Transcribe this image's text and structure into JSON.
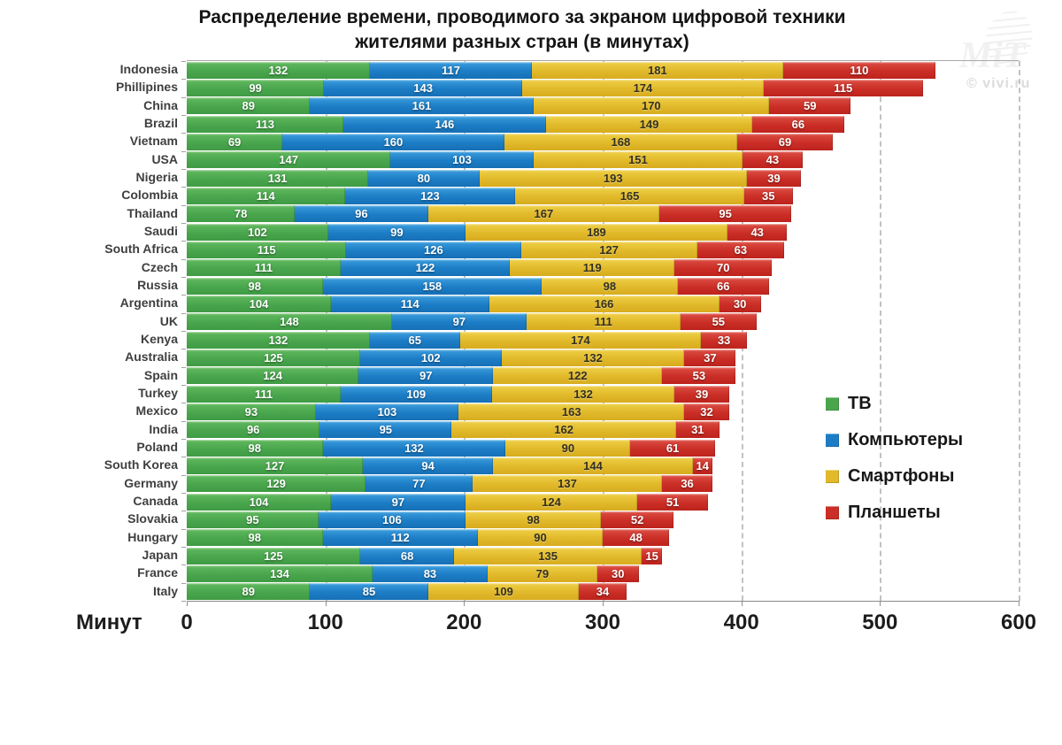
{
  "title": {
    "line1": "Распределение времени, проводимого за экраном цифровой техники",
    "line2": "жителями разных стран (в минутах)"
  },
  "watermark": {
    "logo_text": "МіТ",
    "credit": "© vivi.ru"
  },
  "axis": {
    "label": "Минут",
    "ticks": [
      0,
      100,
      200,
      300,
      400,
      500,
      600
    ],
    "max": 600
  },
  "legend": [
    {
      "label": "ТВ",
      "color": "#49a64d"
    },
    {
      "label": "Компьютеры",
      "color": "#1c7dc6"
    },
    {
      "label": "Смартфоны",
      "color": "#e1b92a"
    },
    {
      "label": "Планшеты",
      "color": "#ca2e26"
    }
  ],
  "chart_data": {
    "type": "bar",
    "orientation": "horizontal",
    "stacked": true,
    "title": "Распределение времени, проводимого за экраном цифровой техники жителями разных стран (в минутах)",
    "xlabel": "Минут",
    "xlim": [
      0,
      600
    ],
    "grid": "vertical dashed gridlines every 100",
    "legend_position": "right",
    "categories": [
      "Indonesia",
      "Phillipines",
      "China",
      "Brazil",
      "Vietnam",
      "USA",
      "Nigeria",
      "Colombia",
      "Thailand",
      "Saudi",
      "South Africa",
      "Czech",
      "Russia",
      "Argentina",
      "UK",
      "Kenya",
      "Australia",
      "Spain",
      "Turkey",
      "Mexico",
      "India",
      "Poland",
      "South Korea",
      "Germany",
      "Canada",
      "Slovakia",
      "Hungary",
      "Japan",
      "France",
      "Italy"
    ],
    "series": [
      {
        "name": "ТВ",
        "color": "#49a64d",
        "values": [
          132,
          99,
          89,
          113,
          69,
          147,
          131,
          114,
          78,
          102,
          115,
          111,
          98,
          104,
          148,
          132,
          125,
          124,
          111,
          93,
          96,
          98,
          127,
          129,
          104,
          95,
          98,
          125,
          134,
          89
        ]
      },
      {
        "name": "Компьютеры",
        "color": "#1c7dc6",
        "values": [
          117,
          143,
          161,
          146,
          160,
          103,
          80,
          123,
          96,
          99,
          126,
          122,
          158,
          114,
          97,
          65,
          102,
          97,
          109,
          103,
          95,
          132,
          94,
          77,
          97,
          106,
          112,
          68,
          83,
          85
        ]
      },
      {
        "name": "Смартфоны",
        "color": "#e1b92a",
        "values": [
          181,
          174,
          170,
          149,
          168,
          151,
          193,
          165,
          167,
          189,
          127,
          119,
          98,
          166,
          111,
          174,
          132,
          122,
          132,
          163,
          162,
          90,
          144,
          137,
          124,
          98,
          90,
          135,
          79,
          109
        ]
      },
      {
        "name": "Планшеты",
        "color": "#ca2e26",
        "values": [
          110,
          115,
          59,
          66,
          69,
          43,
          39,
          35,
          95,
          43,
          63,
          70,
          66,
          30,
          55,
          33,
          37,
          53,
          39,
          32,
          31,
          61,
          14,
          36,
          51,
          52,
          48,
          15,
          30,
          34
        ]
      }
    ]
  }
}
